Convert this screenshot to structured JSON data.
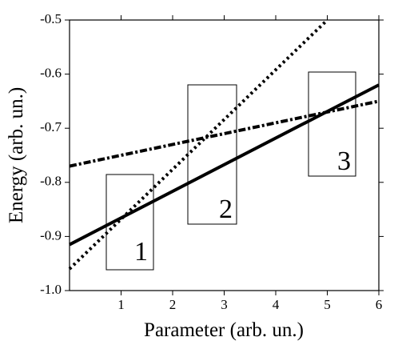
{
  "chart_data": {
    "type": "line",
    "xlabel": "Parameter (arb. un.)",
    "ylabel": "Energy (arb. un.)",
    "x": [
      0,
      5,
      6
    ],
    "series": [
      {
        "color": "#000000",
        "style": "solid",
        "values": [
          -0.915,
          -0.669,
          -0.62
        ]
      },
      {
        "color": "#000000",
        "style": "dotted",
        "values": [
          -0.96,
          -0.5,
          null
        ]
      },
      {
        "color": "#000000",
        "style": "dashdot",
        "values": [
          -0.77,
          -0.67,
          -0.65
        ]
      }
    ],
    "xlim": [
      0,
      6
    ],
    "ylim": [
      -1.0,
      -0.5
    ],
    "xticks": [
      1,
      2,
      3,
      4,
      5,
      6
    ],
    "yticks": [
      {
        "value": -1.0,
        "label": "-1.0"
      },
      -0.9,
      -0.8,
      -0.7,
      -0.6,
      -0.5
    ],
    "annotations": [
      "1",
      "2",
      "3"
    ]
  }
}
